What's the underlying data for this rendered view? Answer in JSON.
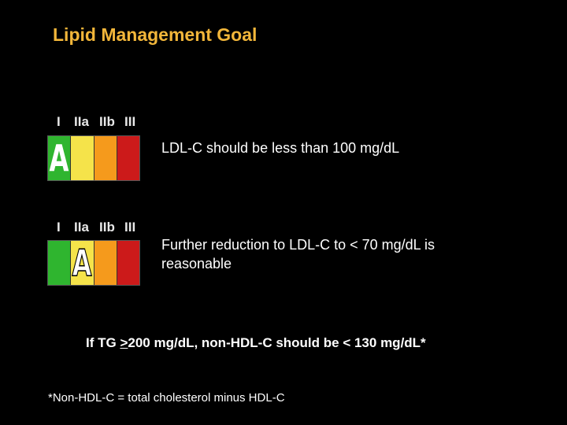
{
  "slide": {
    "title": "Lipid Management Goal",
    "colors": {
      "background": "#000000",
      "title": "#f2b63a",
      "class_I": "#2fb52f",
      "class_IIa": "#f5e34a",
      "class_IIb": "#f59a1c",
      "class_III": "#cc1a1a"
    }
  },
  "recommendations": [
    {
      "class_labels": [
        "I",
        "IIa",
        "IIb",
        "III"
      ],
      "level": "A",
      "level_in_class": "I",
      "text": "LDL-C should be less than 100 mg/dL"
    },
    {
      "class_labels": [
        "I",
        "IIa",
        "IIb",
        "III"
      ],
      "level": "A",
      "level_in_class": "IIa",
      "text": "Further reduction to LDL-C to < 70 mg/dL is reasonable"
    }
  ],
  "tg_statement": {
    "prefix": "If TG ",
    "underlined": ">",
    "suffix": "200 mg/dL, non-HDL-C should be < 130 mg/dL*"
  },
  "footnote": "*Non-HDL-C = total cholesterol minus HDL-C"
}
